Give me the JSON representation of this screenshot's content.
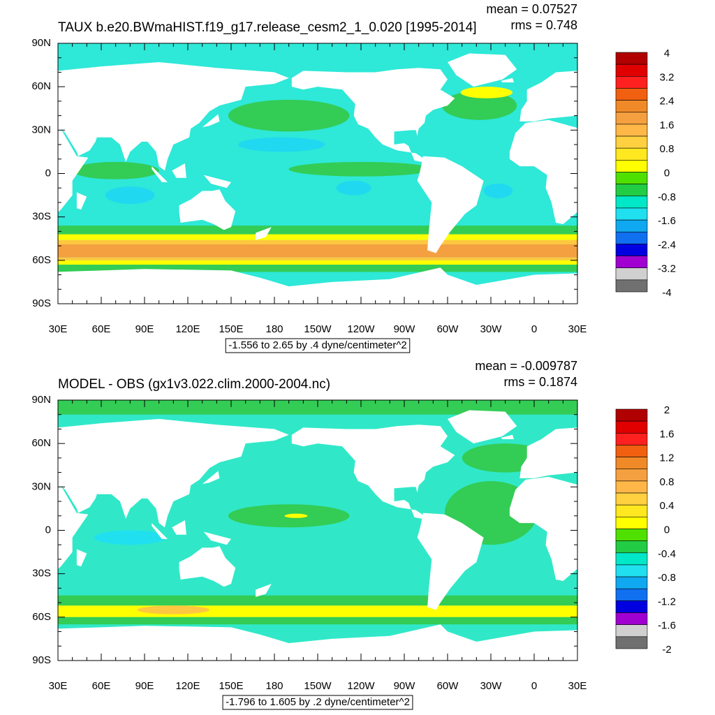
{
  "panels": [
    {
      "title": "TAUX b.e20.BWmaHIST.f19_g17.release_cesm2_1_0.020 [1995-2014]",
      "mean": "mean = 0.07527",
      "rms": "rms = 0.748",
      "lat_labels": [
        "90N",
        "60N",
        "30N",
        "0",
        "30S",
        "60S",
        "90S"
      ],
      "lon_labels": [
        "30E",
        "60E",
        "90E",
        "120E",
        "150E",
        "180",
        "150W",
        "120W",
        "90W",
        "60W",
        "30W",
        "0",
        "30E"
      ],
      "contour_info": "-1.556 to 2.65 by .4 dyne/centimeter^2",
      "colorbar_labels": [
        "4",
        "3.2",
        "2.4",
        "1.6",
        "0.8",
        "0",
        "-0.8",
        "-1.6",
        "-2.4",
        "-3.2",
        "-4"
      ]
    },
    {
      "title": "MODEL - OBS (gx1v3.022.clim.2000-2004.nc)",
      "mean": "mean = -0.009787",
      "rms": "rms = 0.1874",
      "lat_labels": [
        "90N",
        "60N",
        "30N",
        "0",
        "30S",
        "60S",
        "90S"
      ],
      "lon_labels": [
        "30E",
        "60E",
        "90E",
        "120E",
        "150E",
        "180",
        "150W",
        "120W",
        "90W",
        "60W",
        "30W",
        "0",
        "30E"
      ],
      "contour_info": "-1.796 to 1.605 by .2 dyne/centimeter^2",
      "colorbar_labels": [
        "2",
        "1.6",
        "1.2",
        "0.8",
        "0.4",
        "0",
        "-0.4",
        "-0.8",
        "-1.2",
        "-1.6",
        "-2"
      ]
    }
  ],
  "colorbar_colors": [
    "#b00000",
    "#e00000",
    "#ff2020",
    "#f06010",
    "#f08a28",
    "#f5a040",
    "#ffb848",
    "#ffd040",
    "#ffe820",
    "#ffff00",
    "#50e000",
    "#22cc44",
    "#00e8c8",
    "#20e0f0",
    "#10a8f0",
    "#1070f0",
    "#0000e0",
    "#a000d0",
    "#d0d0d0",
    "#707070"
  ]
}
